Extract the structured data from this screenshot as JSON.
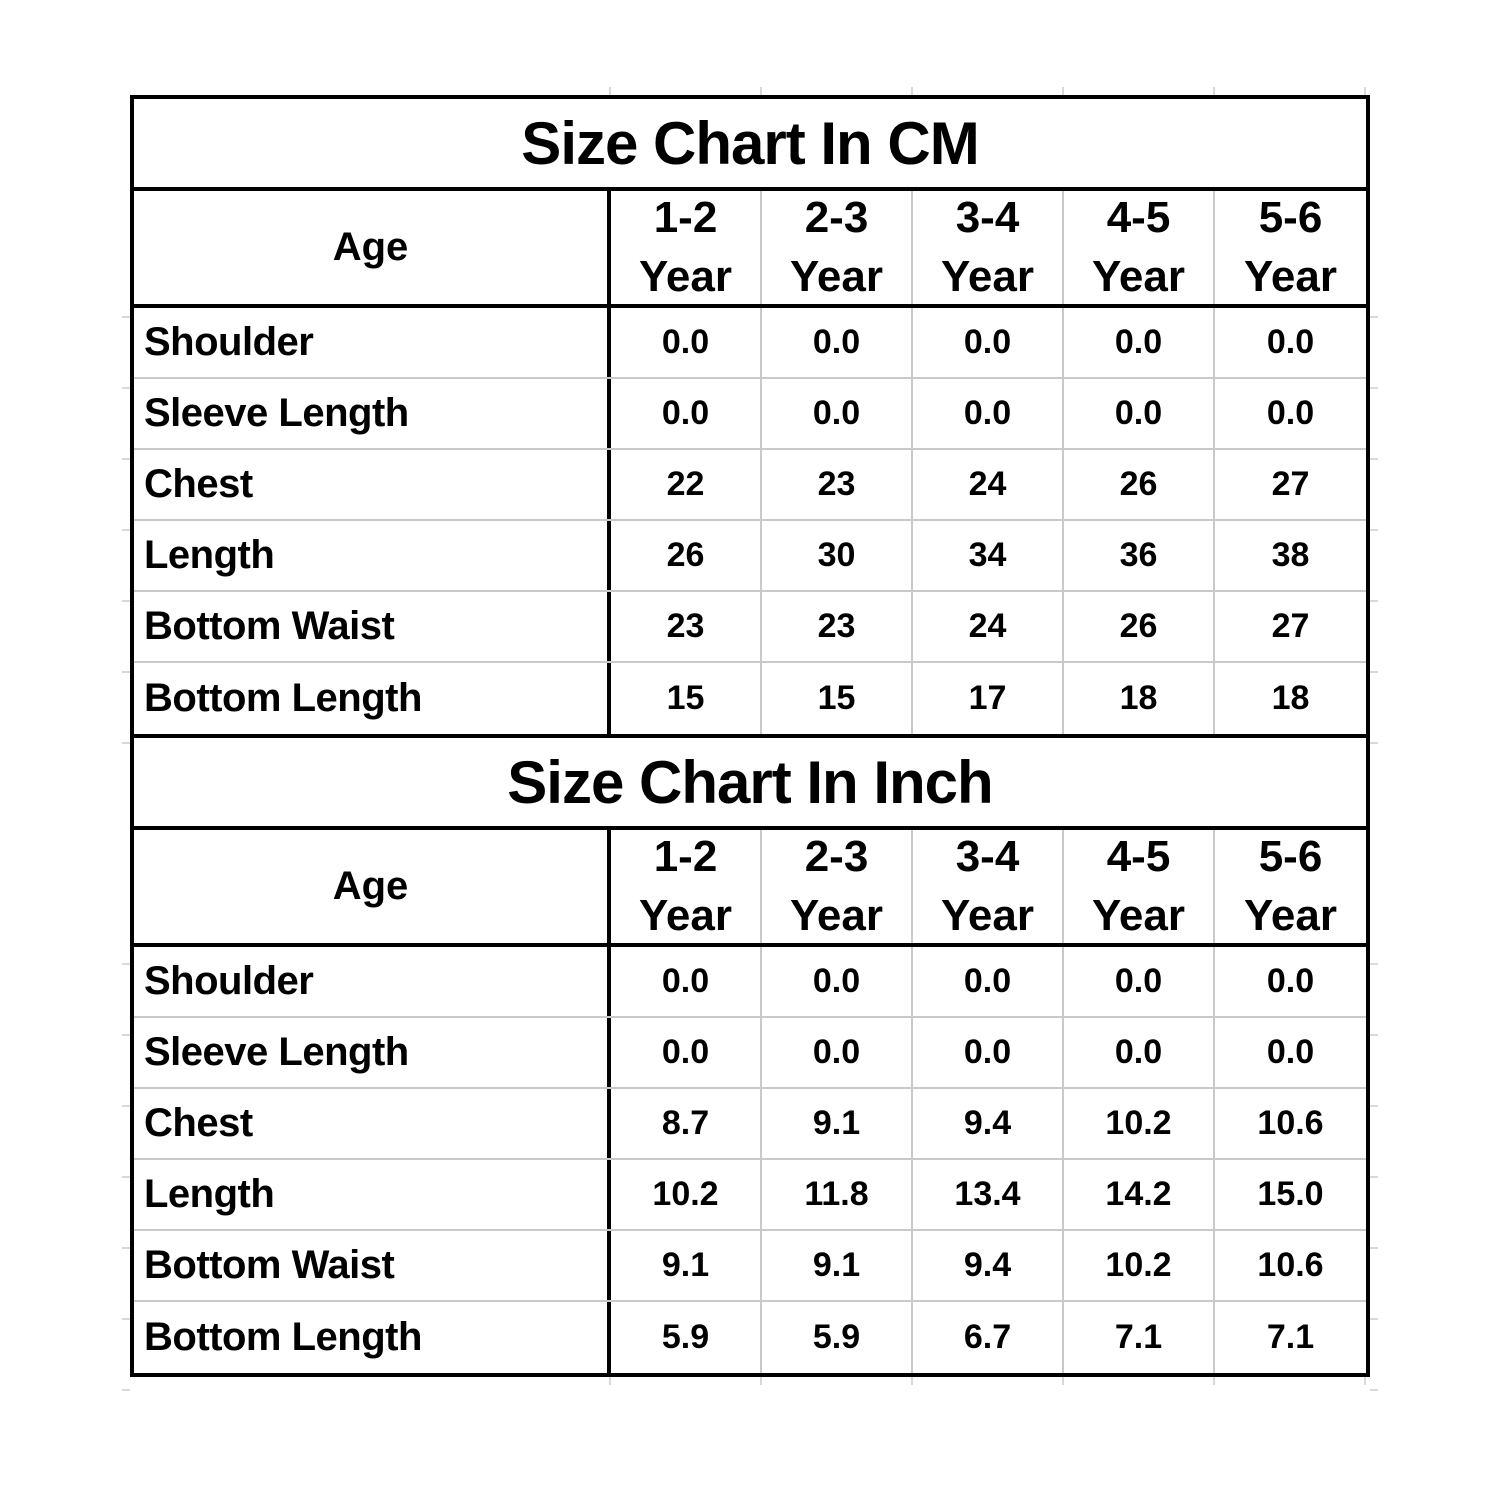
{
  "colors": {
    "background": "#ffffff",
    "text": "#000000",
    "border": "#000000",
    "gridline": "#c9c9c9"
  },
  "tables": [
    {
      "title": "Size Chart In CM",
      "age_label": "Age",
      "columns": [
        {
          "range": "1-2",
          "unit": "Year"
        },
        {
          "range": "2-3",
          "unit": "Year"
        },
        {
          "range": "3-4",
          "unit": "Year"
        },
        {
          "range": "4-5",
          "unit": "Year"
        },
        {
          "range": "5-6",
          "unit": "Year"
        }
      ],
      "rows": [
        {
          "label": "Shoulder",
          "values": [
            "0.0",
            "0.0",
            "0.0",
            "0.0",
            "0.0"
          ]
        },
        {
          "label": "Sleeve Length",
          "values": [
            "0.0",
            "0.0",
            "0.0",
            "0.0",
            "0.0"
          ]
        },
        {
          "label": "Chest",
          "values": [
            "22",
            "23",
            "24",
            "26",
            "27"
          ]
        },
        {
          "label": "Length",
          "values": [
            "26",
            "30",
            "34",
            "36",
            "38"
          ]
        },
        {
          "label": "Bottom Waist",
          "values": [
            "23",
            "23",
            "24",
            "26",
            "27"
          ]
        },
        {
          "label": "Bottom Length",
          "values": [
            "15",
            "15",
            "17",
            "18",
            "18"
          ]
        }
      ]
    },
    {
      "title": "Size Chart In Inch",
      "age_label": "Age",
      "columns": [
        {
          "range": "1-2",
          "unit": "Year"
        },
        {
          "range": "2-3",
          "unit": "Year"
        },
        {
          "range": "3-4",
          "unit": "Year"
        },
        {
          "range": "4-5",
          "unit": "Year"
        },
        {
          "range": "5-6",
          "unit": "Year"
        }
      ],
      "rows": [
        {
          "label": "Shoulder",
          "values": [
            "0.0",
            "0.0",
            "0.0",
            "0.0",
            "0.0"
          ]
        },
        {
          "label": "Sleeve Length",
          "values": [
            "0.0",
            "0.0",
            "0.0",
            "0.0",
            "0.0"
          ]
        },
        {
          "label": "Chest",
          "values": [
            "8.7",
            "9.1",
            "9.4",
            "10.2",
            "10.6"
          ]
        },
        {
          "label": "Length",
          "values": [
            "10.2",
            "11.8",
            "13.4",
            "14.2",
            "15.0"
          ]
        },
        {
          "label": "Bottom Waist",
          "values": [
            "9.1",
            "9.1",
            "9.4",
            "10.2",
            "10.6"
          ]
        },
        {
          "label": "Bottom Length",
          "values": [
            "5.9",
            "5.9",
            "6.7",
            "7.1",
            "7.1"
          ]
        }
      ]
    }
  ],
  "chart_data": [
    {
      "type": "table",
      "title": "Size Chart In CM",
      "columns": [
        "Age",
        "1-2 Year",
        "2-3 Year",
        "3-4 Year",
        "4-5 Year",
        "5-6 Year"
      ],
      "rows": [
        [
          "Shoulder",
          0.0,
          0.0,
          0.0,
          0.0,
          0.0
        ],
        [
          "Sleeve Length",
          0.0,
          0.0,
          0.0,
          0.0,
          0.0
        ],
        [
          "Chest",
          22,
          23,
          24,
          26,
          27
        ],
        [
          "Length",
          26,
          30,
          34,
          36,
          38
        ],
        [
          "Bottom Waist",
          23,
          23,
          24,
          26,
          27
        ],
        [
          "Bottom Length",
          15,
          15,
          17,
          18,
          18
        ]
      ]
    },
    {
      "type": "table",
      "title": "Size Chart In Inch",
      "columns": [
        "Age",
        "1-2 Year",
        "2-3 Year",
        "3-4 Year",
        "4-5 Year",
        "5-6 Year"
      ],
      "rows": [
        [
          "Shoulder",
          0.0,
          0.0,
          0.0,
          0.0,
          0.0
        ],
        [
          "Sleeve Length",
          0.0,
          0.0,
          0.0,
          0.0,
          0.0
        ],
        [
          "Chest",
          8.7,
          9.1,
          9.4,
          10.2,
          10.6
        ],
        [
          "Length",
          10.2,
          11.8,
          13.4,
          14.2,
          15.0
        ],
        [
          "Bottom Waist",
          9.1,
          9.1,
          9.4,
          10.2,
          10.6
        ],
        [
          "Bottom Length",
          5.9,
          5.9,
          6.7,
          7.1,
          7.1
        ]
      ]
    }
  ]
}
